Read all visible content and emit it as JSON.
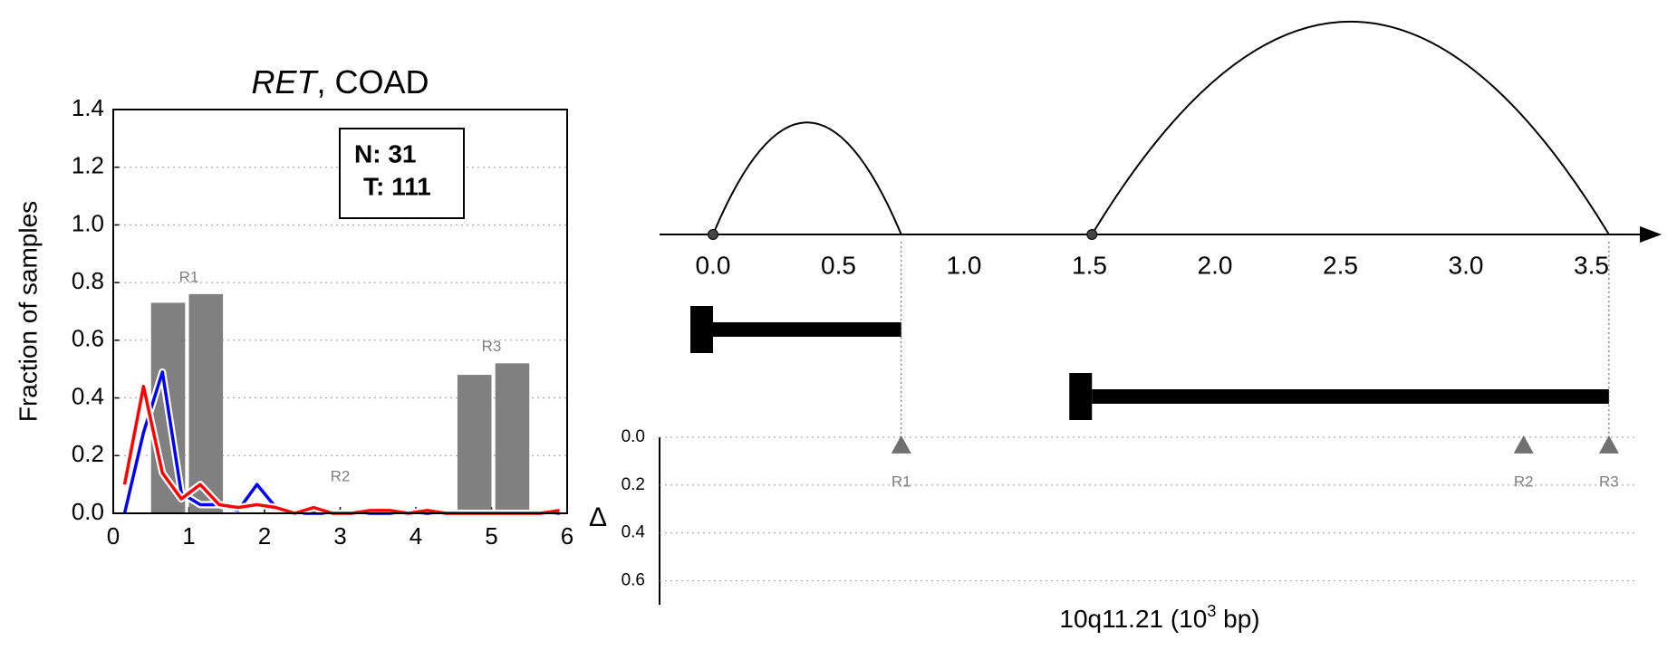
{
  "chart_data": [
    {
      "type": "bar",
      "title": {
        "gene": "RET",
        "rest": ", COAD"
      },
      "ylabel": "Fraction of samples",
      "xlim": [
        0,
        6
      ],
      "xticks": [
        0,
        1,
        2,
        3,
        4,
        5,
        6
      ],
      "ylim": [
        0,
        1.4
      ],
      "yticks": [
        {
          "value": 0,
          "label": "0.0"
        },
        0.2,
        0.4,
        0.6,
        0.8,
        {
          "value": 1,
          "label": "1.0"
        },
        1.2,
        1.4
      ],
      "grid": true,
      "bars": {
        "edges": [
          [
            0.5,
            0.95
          ],
          [
            1.0,
            1.45
          ],
          [
            4.55,
            5.0
          ],
          [
            5.05,
            5.5
          ]
        ],
        "values": [
          0.73,
          0.76,
          0.48,
          0.52
        ],
        "color": "#808080"
      },
      "region_labels": {
        "labels": [
          "R1",
          "R2",
          "R3"
        ],
        "x": [
          1,
          3,
          5
        ]
      },
      "x": [
        0.15,
        0.4,
        0.65,
        0.9,
        1.15,
        1.4,
        1.65,
        1.9,
        2.15,
        2.4,
        2.65,
        2.9,
        3.15,
        3.4,
        3.65,
        3.9,
        4.15,
        4.4,
        4.65,
        4.9,
        5.15,
        5.4,
        5.65,
        5.9
      ],
      "series": [
        {
          "color": "#0000ff",
          "values": [
            0,
            0.28,
            0.49,
            0.07,
            0.03,
            0.03,
            0.01,
            0.1,
            0.02,
            0,
            0,
            0,
            0,
            0,
            0,
            0,
            0,
            0,
            0,
            0,
            0,
            0,
            0,
            0
          ]
        },
        {
          "color": "#ff0000",
          "values": [
            0.1,
            0.44,
            0.14,
            0.05,
            0.1,
            0.03,
            0.02,
            0.03,
            0.02,
            0,
            0.02,
            0,
            0,
            0.01,
            0.01,
            0,
            0.01,
            0,
            0,
            0,
            0,
            0,
            0,
            0.01
          ]
        }
      ],
      "counts_box": [
        "N: 31",
        "T: 111"
      ]
    },
    {
      "type": "arc",
      "xlabel": {
        "text": "10q11.21 (10",
        "sup": "3",
        "end": " bp)"
      },
      "xlim": [
        -0.25,
        3.77
      ],
      "xticks": [
        {
          "value": 0,
          "label": "0.0"
        },
        0.5,
        {
          "value": 1,
          "label": "1.0"
        },
        1.5,
        {
          "value": 2,
          "label": "2.0"
        },
        2.5,
        {
          "value": 3,
          "label": "3.0"
        },
        3.5
      ],
      "arcs": [
        [
          0,
          0.75
        ],
        [
          1.51,
          3.57
        ]
      ],
      "transcripts": [
        [
          0,
          0.75
        ],
        [
          1.51,
          3.57
        ]
      ],
      "ylabel": "Δ",
      "ylim": [
        0,
        0.7
      ],
      "yticks": [
        {
          "value": 0,
          "label": "0.0"
        },
        0.2,
        0.4,
        0.6
      ],
      "regions": {
        "labels": [
          "R1",
          "R2",
          "R3"
        ],
        "x": [
          0.75,
          3.23,
          3.57
        ],
        "values": [
          0.03,
          0.03,
          0.03
        ],
        "color": "#707070"
      }
    }
  ]
}
